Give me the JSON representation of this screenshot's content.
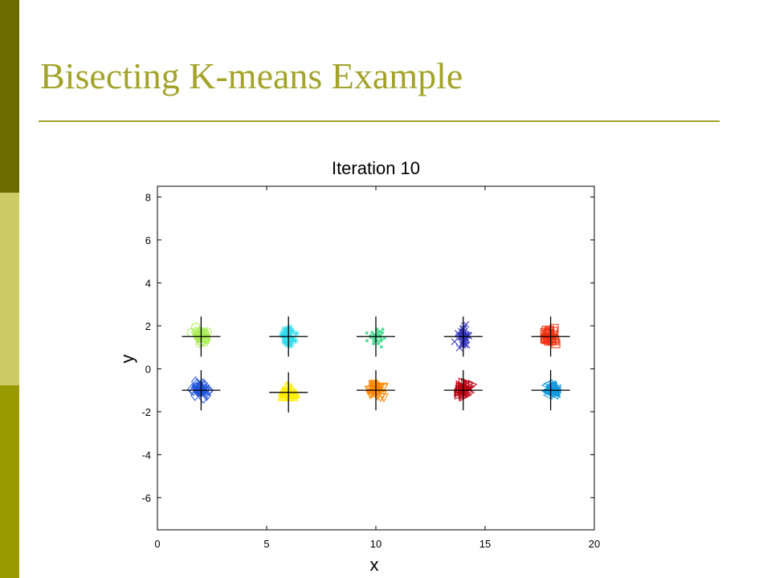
{
  "slide": {
    "title": "Bisecting K-means Example"
  },
  "chart_data": {
    "type": "scatter",
    "title": "Iteration 10",
    "xlabel": "x",
    "ylabel": "y",
    "xlim": [
      0,
      20
    ],
    "ylim": [
      -7.5,
      8.5
    ],
    "xticks": [
      0,
      5,
      10,
      15,
      20
    ],
    "yticks": [
      -6,
      -4,
      -2,
      0,
      2,
      4,
      6,
      8
    ],
    "grid": false,
    "series": [
      {
        "center": [
          2,
          1.5
        ],
        "marker": "circle",
        "color": "#aaee55",
        "spread": [
          0.45,
          0.5
        ]
      },
      {
        "center": [
          6,
          1.5
        ],
        "marker": "star",
        "color": "#33ddee",
        "spread": [
          0.4,
          0.5
        ]
      },
      {
        "center": [
          10,
          1.5
        ],
        "marker": "dot",
        "color": "#55dd99",
        "spread": [
          0.5,
          0.5
        ]
      },
      {
        "center": [
          14,
          1.5
        ],
        "marker": "x",
        "color": "#3333bb",
        "spread": [
          0.4,
          0.6
        ]
      },
      {
        "center": [
          18,
          1.5
        ],
        "marker": "square",
        "color": "#ee3311",
        "spread": [
          0.4,
          0.4
        ]
      },
      {
        "center": [
          2,
          -1
        ],
        "marker": "diamond",
        "color": "#2255dd",
        "spread": [
          0.45,
          0.4
        ]
      },
      {
        "center": [
          6,
          -1.1
        ],
        "marker": "triangle-up",
        "color": "#ffee00",
        "spread": [
          0.5,
          0.35
        ]
      },
      {
        "center": [
          10,
          -1
        ],
        "marker": "triangle-down",
        "color": "#ff8800",
        "spread": [
          0.45,
          0.45
        ]
      },
      {
        "center": [
          14,
          -1
        ],
        "marker": "triangle-right",
        "color": "#bb0011",
        "spread": [
          0.45,
          0.45
        ]
      },
      {
        "center": [
          18,
          -1
        ],
        "marker": "triangle-left",
        "color": "#1199dd",
        "spread": [
          0.4,
          0.4
        ]
      }
    ]
  }
}
